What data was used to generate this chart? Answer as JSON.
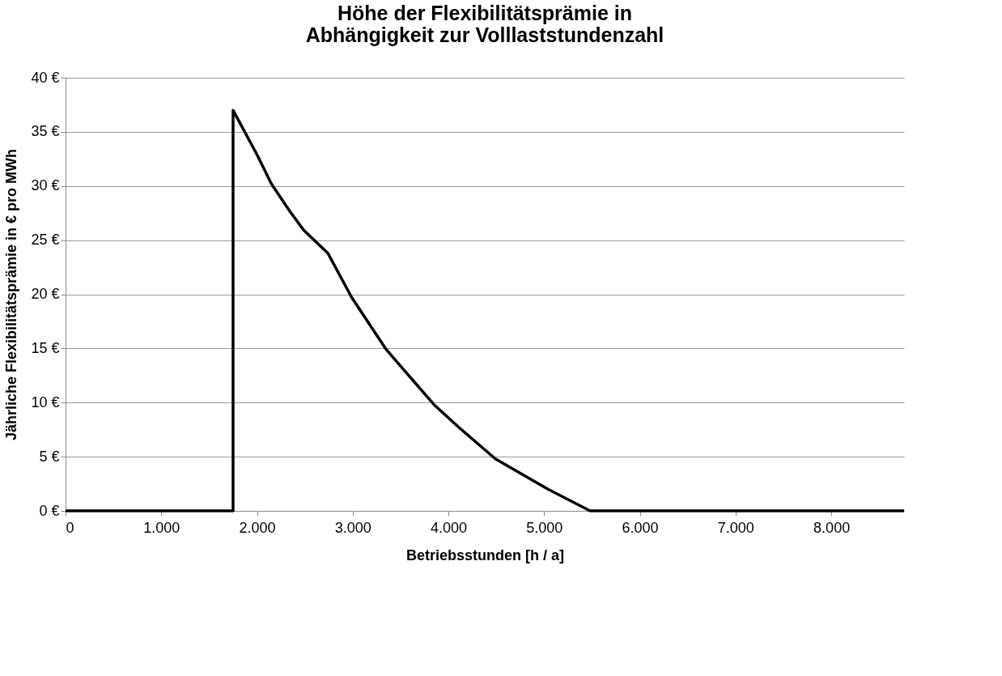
{
  "chart_data": {
    "type": "line",
    "title": [
      "Höhe der Flexibilitätsprämie in",
      "Abhängigkeit zur Volllaststundenzahl"
    ],
    "xlabel": "Betriebsstunden [h / a]",
    "ylabel": "Jährliche Flexibilitätsprämie in € pro MWh",
    "series": [
      {
        "color": "#000000",
        "x": [
          0,
          1750,
          1750,
          2000,
          2150,
          2340,
          2490,
          2740,
          2990,
          3350,
          3850,
          4110,
          4490,
          5040,
          5480,
          8760
        ],
        "values": [
          0,
          0,
          37,
          32.9,
          30.2,
          27.7,
          25.9,
          23.8,
          19.7,
          14.9,
          9.8,
          7.7,
          4.8,
          2.0,
          0,
          0
        ]
      }
    ],
    "xlim": [
      0,
      8760
    ],
    "xticks": [
      {
        "value": 0,
        "label": "0"
      },
      {
        "value": 1000,
        "label": "1.000"
      },
      {
        "value": 2000,
        "label": "2.000"
      },
      {
        "value": 3000,
        "label": "3.000"
      },
      {
        "value": 4000,
        "label": "4.000"
      },
      {
        "value": 5000,
        "label": "5.000"
      },
      {
        "value": 6000,
        "label": "6.000"
      },
      {
        "value": 7000,
        "label": "7.000"
      },
      {
        "value": 8000,
        "label": "8.000"
      }
    ],
    "ylim": [
      0,
      40
    ],
    "yticks": [
      {
        "value": 0,
        "label": "0 €"
      },
      {
        "value": 5,
        "label": "5 €"
      },
      {
        "value": 10,
        "label": "10 €"
      },
      {
        "value": 15,
        "label": "15 €"
      },
      {
        "value": 20,
        "label": "20 €"
      },
      {
        "value": 25,
        "label": "25 €"
      },
      {
        "value": 30,
        "label": "30 €"
      },
      {
        "value": 35,
        "label": "35 €"
      },
      {
        "value": 40,
        "label": "40 €"
      }
    ],
    "grid": "y",
    "legend": false,
    "marker": "none",
    "line_style": "solid"
  }
}
